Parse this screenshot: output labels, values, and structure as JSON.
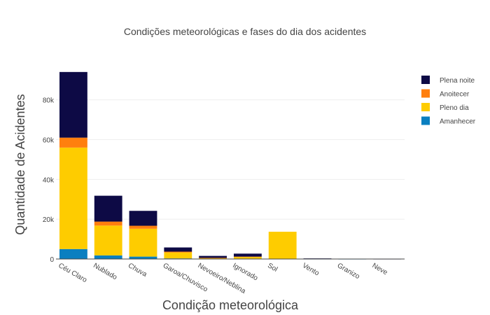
{
  "chart_data": {
    "type": "bar",
    "stacked": true,
    "title": "Condições meteorológicas e fases do dia dos acidentes",
    "xlabel": "Condição meteorológica",
    "ylabel": "Quantidade de Acidentes",
    "ylim": [
      0,
      95000
    ],
    "yticks": [
      0,
      20000,
      40000,
      60000,
      80000
    ],
    "ytick_labels": [
      "0",
      "20k",
      "40k",
      "60k",
      "80k"
    ],
    "grid": true,
    "legend_position": "top-right",
    "categories": [
      "Céu Claro",
      "Nublado",
      "Chuva",
      "Garoa/Chuvisco",
      "Nevoeiro/Neblina",
      "Ignorado",
      "Sol",
      "Vento",
      "Granizo",
      "Neve"
    ],
    "series": [
      {
        "name": "Amanhecer",
        "color": "#0a7fc0",
        "values": [
          5000,
          1800,
          1200,
          300,
          150,
          200,
          0,
          20,
          5,
          0
        ]
      },
      {
        "name": "Pleno dia",
        "color": "#fecc00",
        "values": [
          51000,
          15000,
          14000,
          3000,
          300,
          800,
          13700,
          150,
          80,
          0
        ]
      },
      {
        "name": "Anoitecer",
        "color": "#ff7f0e",
        "values": [
          5000,
          2000,
          1500,
          400,
          100,
          200,
          0,
          20,
          10,
          0
        ]
      },
      {
        "name": "Plena noite",
        "color": "#0d0a45",
        "values": [
          33000,
          13000,
          7500,
          2100,
          1000,
          1500,
          0,
          110,
          50,
          10
        ]
      }
    ]
  }
}
